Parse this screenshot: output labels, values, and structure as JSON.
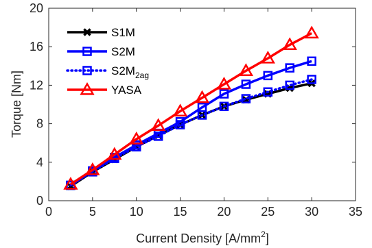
{
  "chart_data": {
    "type": "line",
    "xlabel": "Current Density [A/mm",
    "xlabel_sup": "2",
    "xlabel_end": "]",
    "ylabel": "Torque [Nm]",
    "xlim": [
      0,
      35
    ],
    "ylim": [
      0,
      20
    ],
    "xticks": [
      0,
      5,
      10,
      15,
      20,
      25,
      30,
      35
    ],
    "yticks": [
      0,
      4,
      8,
      12,
      16,
      20
    ],
    "grid": false,
    "legend_position": "top-left",
    "x": [
      2.5,
      5,
      7.5,
      10,
      12.5,
      15,
      17.5,
      20,
      22.5,
      25,
      27.5,
      30
    ],
    "series": [
      {
        "name": "S1M",
        "name_sub": "",
        "color": "#000000",
        "marker": "x-mark",
        "dash": "solid",
        "values": [
          1.5,
          3.0,
          4.3,
          5.6,
          6.8,
          7.9,
          8.9,
          9.8,
          10.5,
          11.1,
          11.7,
          12.2
        ]
      },
      {
        "name": "S2M",
        "name_sub": "",
        "color": "#0000ff",
        "marker": "square",
        "dash": "solid",
        "values": [
          1.6,
          3.1,
          4.5,
          5.8,
          7.0,
          8.2,
          9.7,
          11.1,
          12.1,
          13.0,
          13.8,
          14.5
        ]
      },
      {
        "name": "S2M",
        "name_sub": "2ag",
        "color": "#0000ff",
        "marker": "square",
        "dash": "dotted",
        "values": [
          1.6,
          3.0,
          4.4,
          5.6,
          6.7,
          7.9,
          8.9,
          9.8,
          10.6,
          11.3,
          12.0,
          12.6
        ]
      },
      {
        "name": "YASA",
        "name_sub": "",
        "color": "#ff0000",
        "marker": "triangle",
        "dash": "solid",
        "values": [
          1.7,
          3.2,
          4.8,
          6.4,
          7.8,
          9.3,
          10.7,
          12.1,
          13.5,
          14.8,
          16.2,
          17.4
        ]
      }
    ]
  }
}
